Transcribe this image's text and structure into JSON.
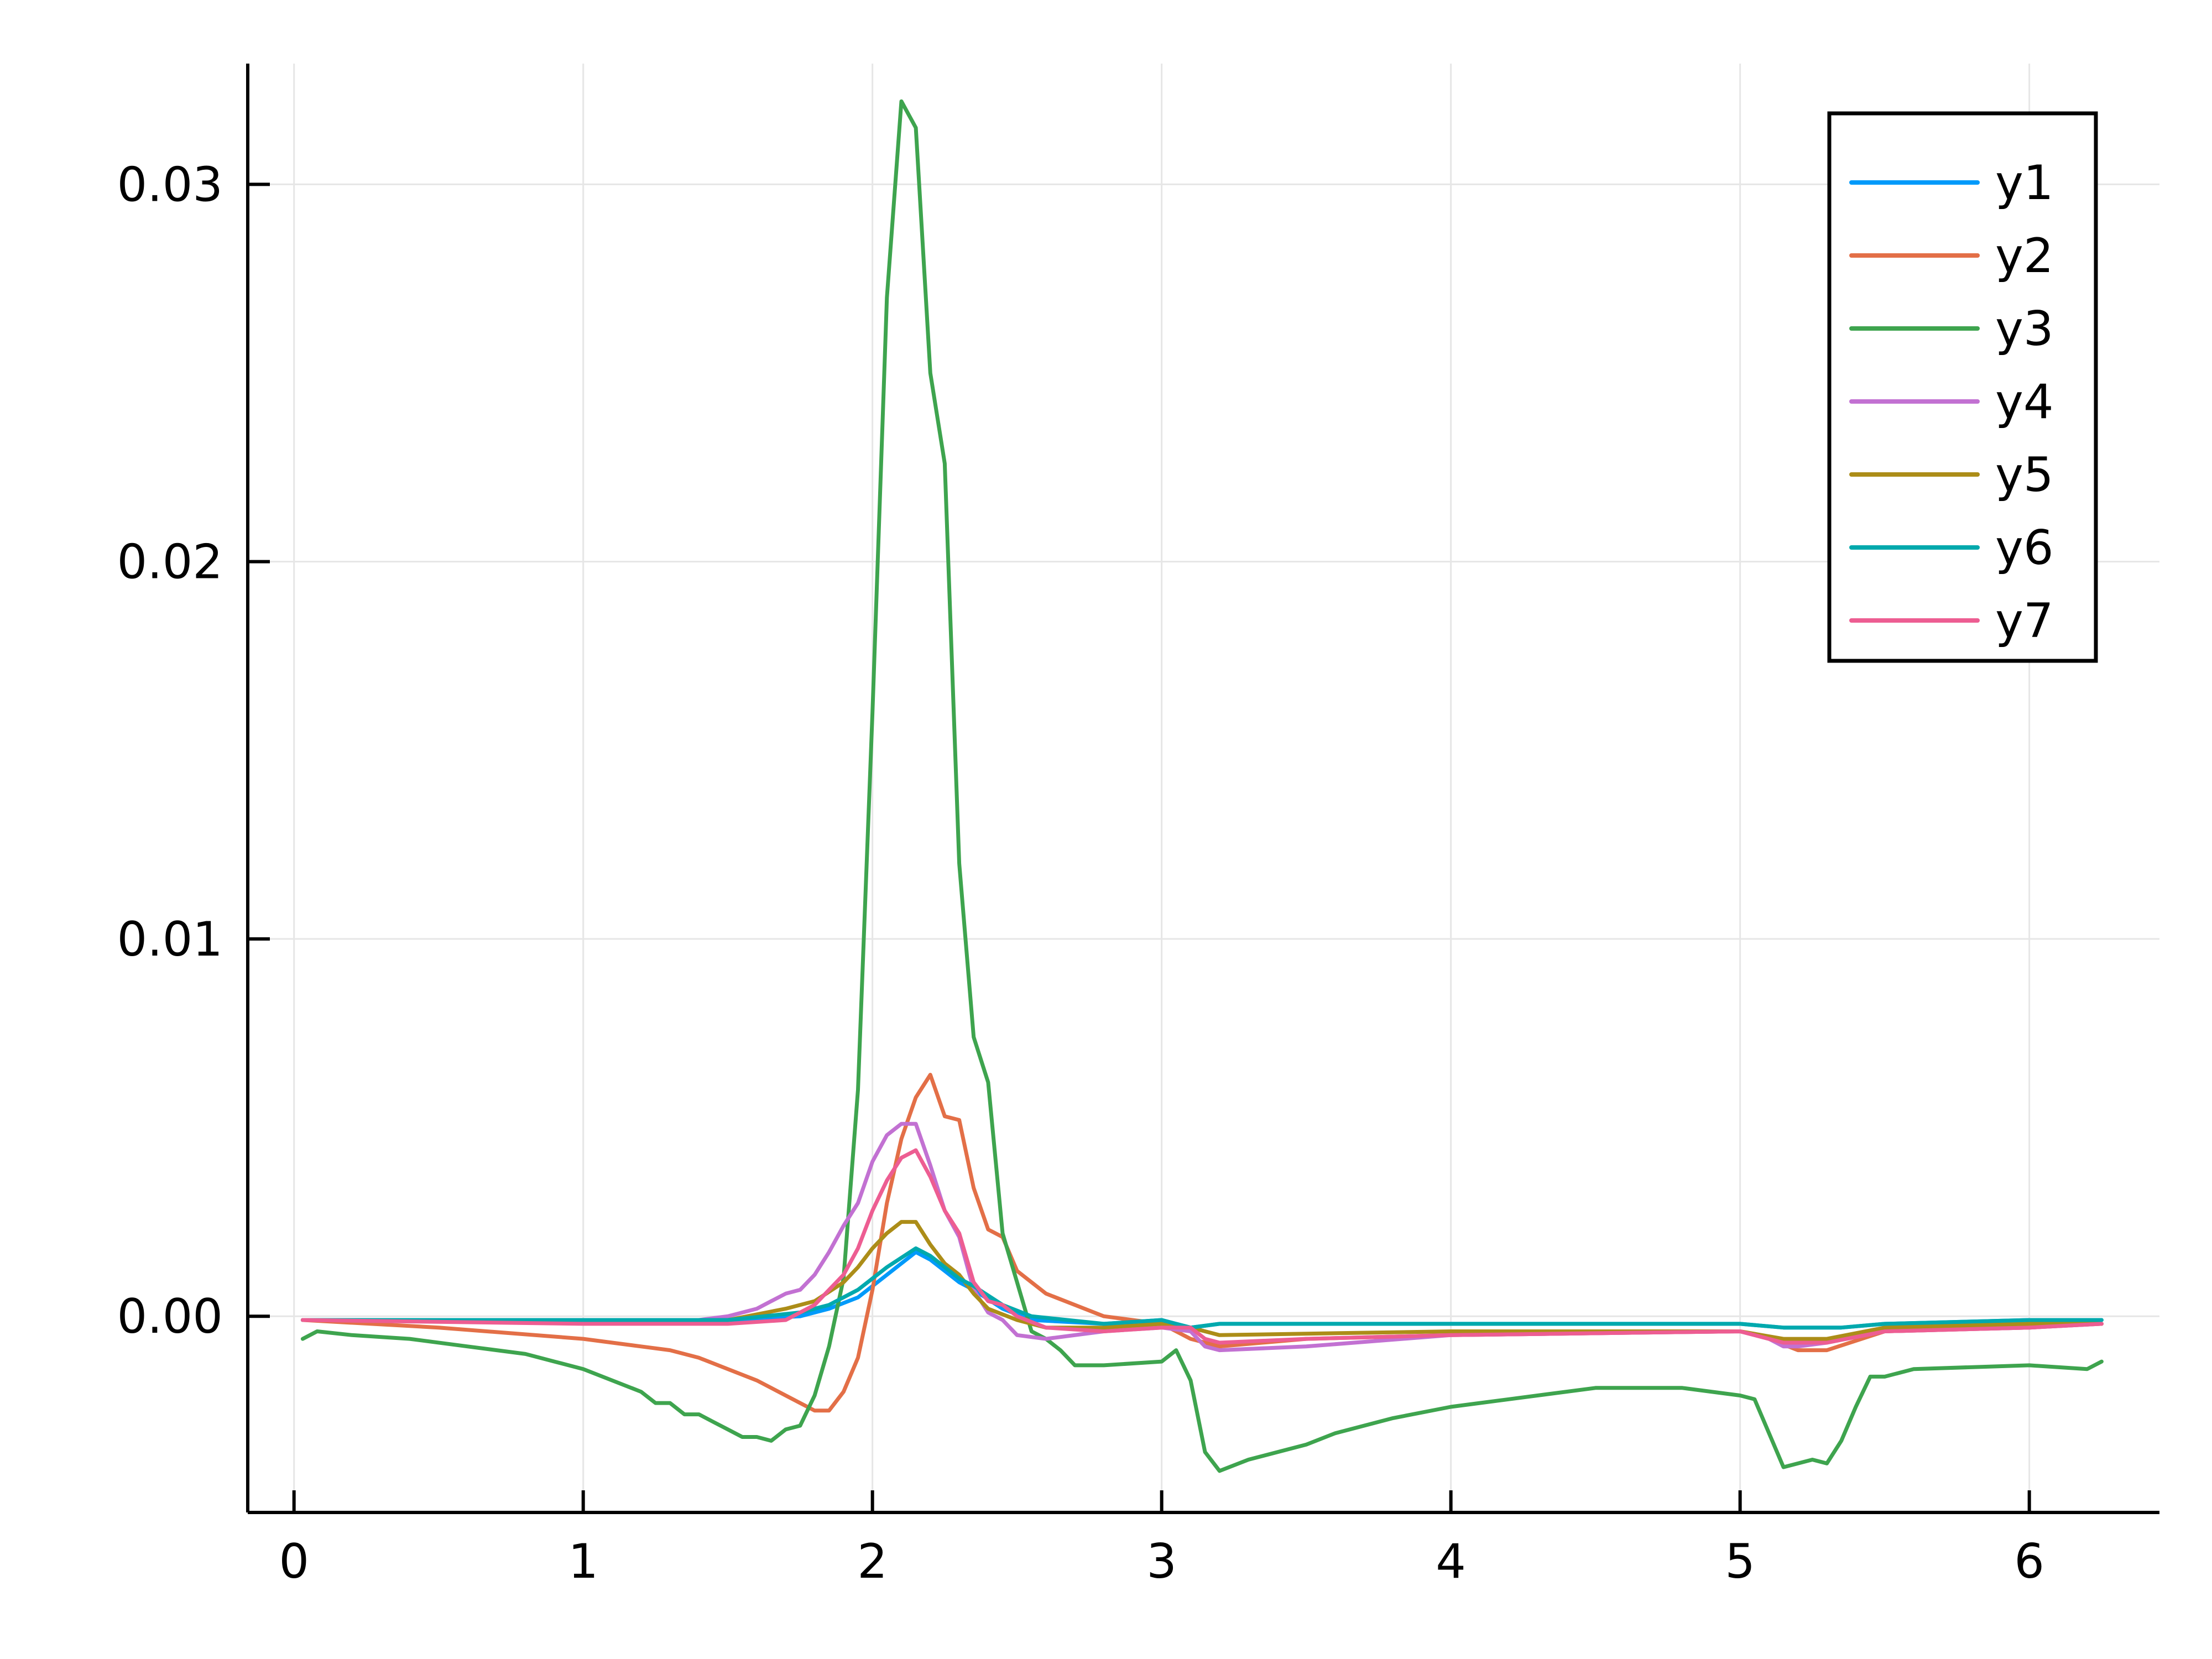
{
  "chart_data": {
    "type": "line",
    "title": "",
    "xlabel": "",
    "ylabel": "",
    "xlim": [
      -0.16,
      6.45
    ],
    "ylim": [
      -0.0052,
      0.0332
    ],
    "grid": true,
    "legend_position": "top-right",
    "x_ticks": [
      {
        "value": 0,
        "label": "0"
      },
      {
        "value": 1,
        "label": "1"
      },
      {
        "value": 2,
        "label": "2"
      },
      {
        "value": 3,
        "label": "3"
      },
      {
        "value": 4,
        "label": "4"
      },
      {
        "value": 5,
        "label": "5"
      },
      {
        "value": 6,
        "label": "6"
      }
    ],
    "y_ticks": [
      {
        "value": 0.0,
        "label": "0.00"
      },
      {
        "value": 0.01,
        "label": "0.01"
      },
      {
        "value": 0.02,
        "label": "0.02"
      },
      {
        "value": 0.03,
        "label": "0.03"
      }
    ],
    "series": [
      {
        "name": "y1",
        "color": "#009AFA",
        "x": [
          0.03,
          1.0,
          1.5,
          1.75,
          1.85,
          1.95,
          2.05,
          2.15,
          2.2,
          2.25,
          2.3,
          2.35,
          2.45,
          2.55,
          2.8,
          3.0,
          3.05,
          3.1,
          3.2,
          4.0,
          5.0,
          5.15,
          5.35,
          5.5,
          6.0,
          6.25
        ],
        "y": [
          -0.0001,
          -0.0001,
          -0.0001,
          0.0,
          0.0002,
          0.0005,
          0.0011,
          0.0017,
          0.0015,
          0.0012,
          0.0009,
          0.0007,
          0.0002,
          -0.0001,
          -0.0002,
          -0.0001,
          -0.0002,
          -0.0003,
          -0.0002,
          -0.0002,
          -0.0002,
          -0.0003,
          -0.0003,
          -0.0002,
          -0.0001,
          -0.0001
        ]
      },
      {
        "name": "y2",
        "color": "#E36F47",
        "x": [
          0.03,
          0.5,
          1.0,
          1.2,
          1.3,
          1.4,
          1.5,
          1.6,
          1.7,
          1.8,
          1.85,
          1.9,
          1.95,
          2.0,
          2.05,
          2.1,
          2.15,
          2.2,
          2.25,
          2.3,
          2.35,
          2.4,
          2.45,
          2.5,
          2.6,
          2.7,
          2.8,
          3.0,
          3.1,
          3.2,
          3.5,
          4.0,
          5.0,
          5.1,
          5.2,
          5.3,
          5.5,
          6.0,
          6.25
        ],
        "y": [
          -0.0001,
          -0.0003,
          -0.0006,
          -0.0008,
          -0.0009,
          -0.0011,
          -0.0014,
          -0.0017,
          -0.0021,
          -0.0025,
          -0.0025,
          -0.002,
          -0.0011,
          0.0007,
          0.003,
          0.0047,
          0.0058,
          0.0064,
          0.0053,
          0.0052,
          0.0034,
          0.0023,
          0.0021,
          0.0012,
          0.0006,
          0.0003,
          0.0,
          -0.0002,
          -0.0006,
          -0.0008,
          -0.0006,
          -0.0005,
          -0.0004,
          -0.0006,
          -0.0009,
          -0.0009,
          -0.0004,
          -0.0003,
          -0.0002
        ]
      },
      {
        "name": "y3",
        "color": "#3EA44E",
        "x": [
          0.03,
          0.08,
          0.2,
          0.4,
          0.6,
          0.8,
          0.9,
          1.0,
          1.1,
          1.2,
          1.25,
          1.3,
          1.35,
          1.4,
          1.45,
          1.5,
          1.55,
          1.6,
          1.65,
          1.7,
          1.75,
          1.8,
          1.85,
          1.9,
          1.95,
          2.0,
          2.05,
          2.1,
          2.15,
          2.2,
          2.25,
          2.3,
          2.35,
          2.4,
          2.45,
          2.5,
          2.55,
          2.6,
          2.65,
          2.7,
          2.8,
          3.0,
          3.05,
          3.1,
          3.15,
          3.2,
          3.3,
          3.5,
          3.6,
          3.8,
          4.0,
          4.2,
          4.5,
          4.8,
          5.0,
          5.05,
          5.15,
          5.25,
          5.3,
          5.35,
          5.4,
          5.45,
          5.5,
          5.6,
          6.0,
          6.2,
          6.25
        ],
        "y": [
          -0.0006,
          -0.0004,
          -0.0005,
          -0.0006,
          -0.0008,
          -0.001,
          -0.0012,
          -0.0014,
          -0.0017,
          -0.002,
          -0.0023,
          -0.0023,
          -0.0026,
          -0.0026,
          -0.0028,
          -0.003,
          -0.0032,
          -0.0032,
          -0.0033,
          -0.003,
          -0.0029,
          -0.0021,
          -0.0008,
          0.001,
          0.006,
          0.016,
          0.027,
          0.0322,
          0.0315,
          0.025,
          0.0226,
          0.012,
          0.0074,
          0.0062,
          0.0022,
          0.0009,
          -0.0004,
          -0.0006,
          -0.0009,
          -0.0013,
          -0.0013,
          -0.0012,
          -0.0009,
          -0.0017,
          -0.0036,
          -0.0041,
          -0.0038,
          -0.0034,
          -0.0031,
          -0.0027,
          -0.0024,
          -0.0022,
          -0.0019,
          -0.0019,
          -0.0021,
          -0.0022,
          -0.004,
          -0.0038,
          -0.0039,
          -0.0033,
          -0.0024,
          -0.0016,
          -0.0016,
          -0.0014,
          -0.0013,
          -0.0014,
          -0.0012
        ]
      },
      {
        "name": "y4",
        "color": "#C271D2",
        "x": [
          0.03,
          1.0,
          1.4,
          1.5,
          1.6,
          1.65,
          1.7,
          1.75,
          1.8,
          1.85,
          1.9,
          1.95,
          2.0,
          2.05,
          2.1,
          2.15,
          2.2,
          2.25,
          2.3,
          2.35,
          2.4,
          2.45,
          2.5,
          2.6,
          2.8,
          3.0,
          3.1,
          3.15,
          3.2,
          3.5,
          4.0,
          5.0,
          5.1,
          5.15,
          5.2,
          5.3,
          5.5,
          6.0,
          6.25
        ],
        "y": [
          -0.0001,
          -0.0001,
          -0.0001,
          0.0,
          0.0002,
          0.0004,
          0.0006,
          0.0007,
          0.0011,
          0.0017,
          0.0024,
          0.003,
          0.0041,
          0.0048,
          0.0051,
          0.0051,
          0.004,
          0.0028,
          0.0021,
          0.0007,
          0.0001,
          -0.0001,
          -0.0005,
          -0.0006,
          -0.0004,
          -0.0003,
          -0.0004,
          -0.0008,
          -0.0009,
          -0.0008,
          -0.0005,
          -0.0004,
          -0.0006,
          -0.0008,
          -0.0008,
          -0.0007,
          -0.0004,
          -0.0003,
          -0.0002
        ]
      },
      {
        "name": "y5",
        "color": "#AC8D18",
        "x": [
          0.03,
          1.0,
          1.5,
          1.7,
          1.8,
          1.9,
          1.95,
          2.0,
          2.05,
          2.1,
          2.15,
          2.2,
          2.25,
          2.3,
          2.35,
          2.4,
          2.5,
          2.6,
          2.8,
          3.0,
          3.1,
          3.2,
          4.0,
          5.0,
          5.15,
          5.3,
          5.5,
          6.0,
          6.25
        ],
        "y": [
          -0.0001,
          -0.0001,
          -0.0001,
          0.0002,
          0.0004,
          0.0009,
          0.0013,
          0.0018,
          0.0022,
          0.0025,
          0.0025,
          0.0019,
          0.0014,
          0.0011,
          0.0006,
          0.0002,
          -0.0001,
          -0.0003,
          -0.0003,
          -0.0002,
          -0.0003,
          -0.0005,
          -0.0004,
          -0.0004,
          -0.0006,
          -0.0006,
          -0.0003,
          -0.0002,
          -0.0002
        ]
      },
      {
        "name": "y6",
        "color": "#00A9AD",
        "x": [
          0.03,
          1.0,
          1.5,
          1.75,
          1.85,
          1.95,
          2.05,
          2.15,
          2.2,
          2.25,
          2.3,
          2.35,
          2.45,
          2.55,
          2.8,
          3.0,
          3.05,
          3.1,
          3.2,
          4.0,
          5.0,
          5.15,
          5.35,
          5.5,
          6.0,
          6.25
        ],
        "y": [
          -0.0001,
          -0.0001,
          -0.0001,
          0.0001,
          0.0003,
          0.0007,
          0.0013,
          0.0018,
          0.0016,
          0.0013,
          0.001,
          0.0008,
          0.0003,
          0.0,
          -0.0002,
          -0.0001,
          -0.0002,
          -0.0003,
          -0.0002,
          -0.0002,
          -0.0002,
          -0.0003,
          -0.0003,
          -0.0002,
          -0.0001,
          -0.0001
        ]
      },
      {
        "name": "y7",
        "color": "#ED5D92",
        "x": [
          0.03,
          1.0,
          1.5,
          1.7,
          1.8,
          1.9,
          1.95,
          2.0,
          2.05,
          2.1,
          2.15,
          2.2,
          2.25,
          2.3,
          2.35,
          2.4,
          2.45,
          2.5,
          2.6,
          2.8,
          3.0,
          3.1,
          3.15,
          3.2,
          3.5,
          4.0,
          5.0,
          5.15,
          5.3,
          5.5,
          6.0,
          6.25
        ],
        "y": [
          -0.0001,
          -0.0002,
          -0.0002,
          -0.0001,
          0.0003,
          0.0011,
          0.0018,
          0.0028,
          0.0036,
          0.0042,
          0.0044,
          0.0037,
          0.0028,
          0.0022,
          0.0009,
          0.0004,
          0.0003,
          0.0,
          -0.0003,
          -0.0004,
          -0.0003,
          -0.0003,
          -0.0006,
          -0.0007,
          -0.0006,
          -0.0005,
          -0.0004,
          -0.0007,
          -0.0007,
          -0.0004,
          -0.0003,
          -0.0002
        ]
      }
    ]
  }
}
